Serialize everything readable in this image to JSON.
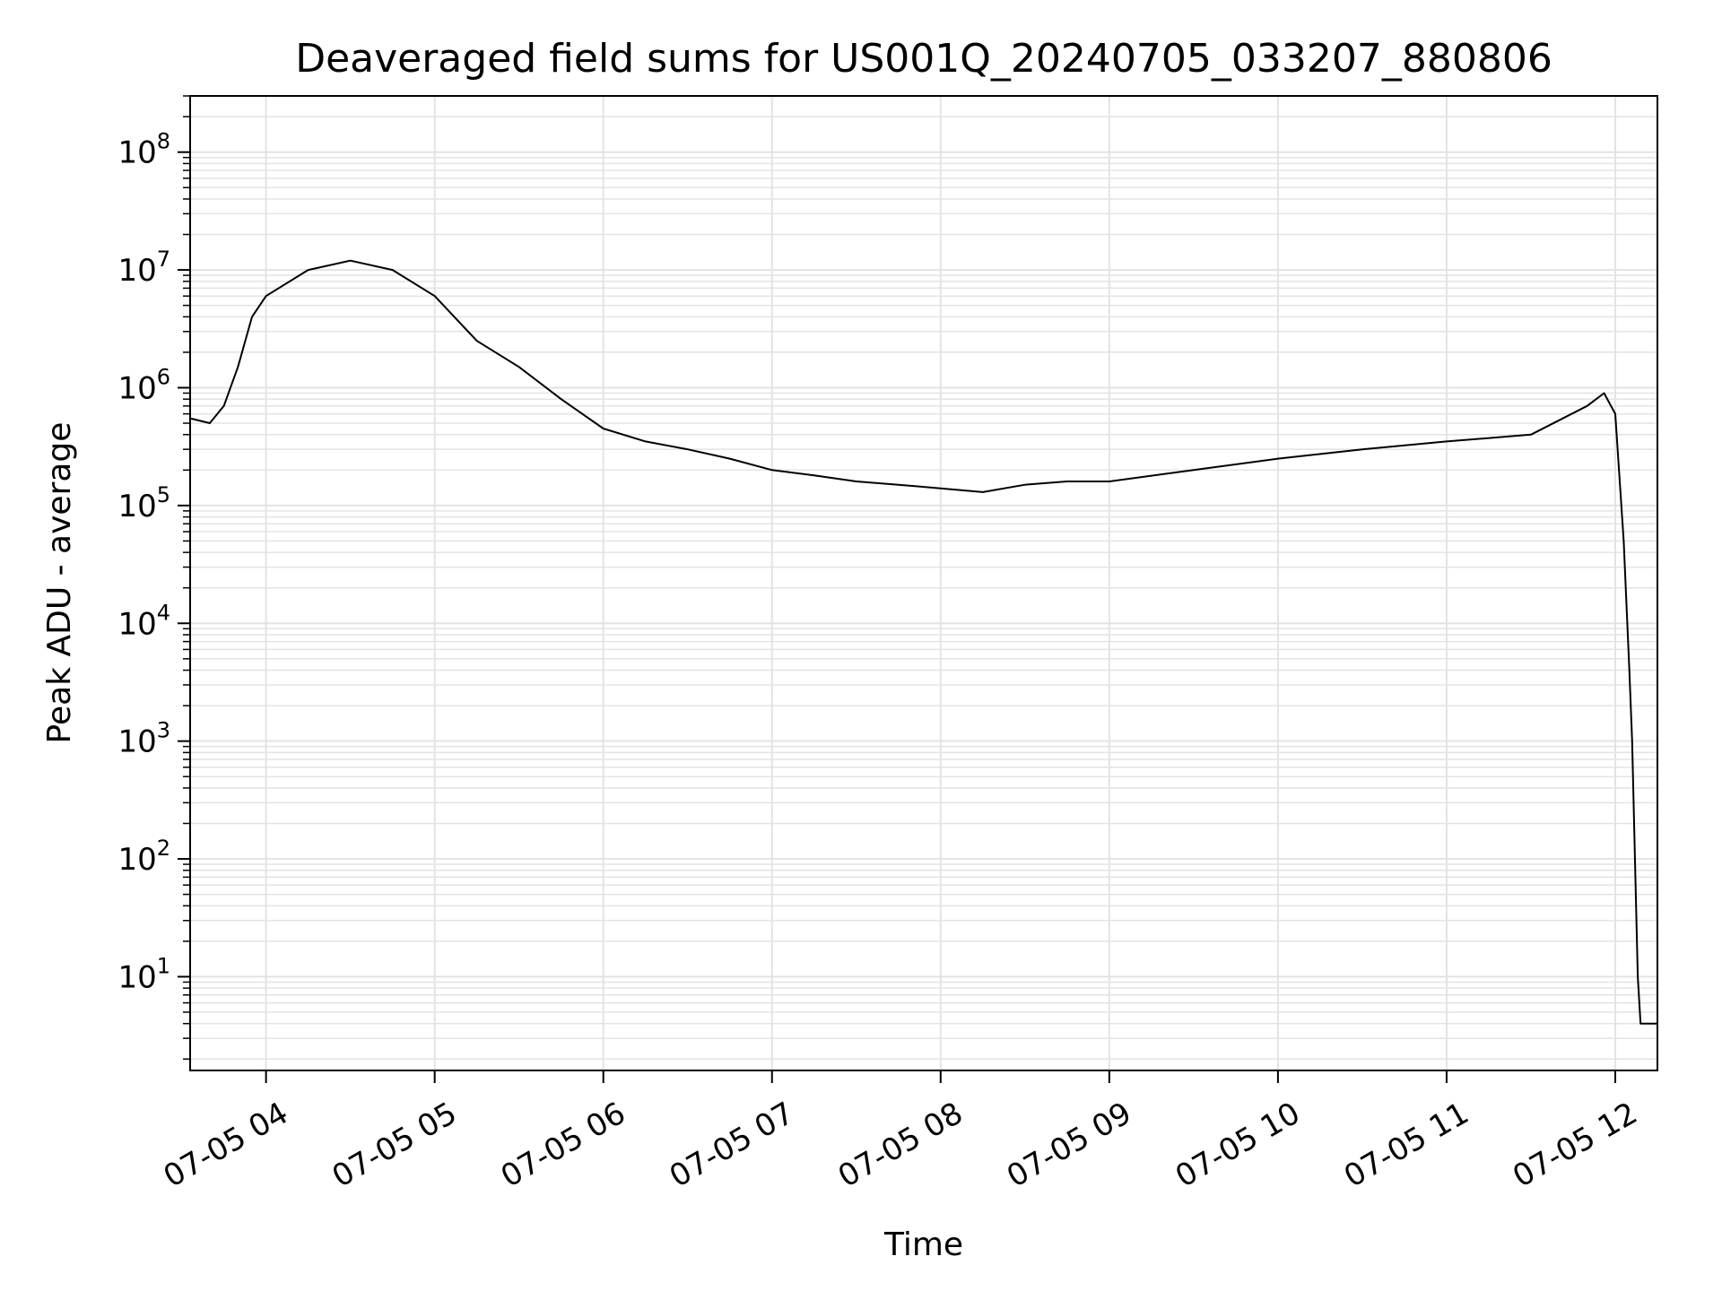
{
  "chart_data": {
    "type": "line",
    "title": "Deaveraged field sums for US001Q_20240705_033207_880806",
    "xlabel": "Time",
    "ylabel": "Peak ADU - average",
    "yscale": "log",
    "grid": true,
    "line_color": "#000000",
    "grid_color": "#e3e3e3",
    "xlim": [
      "2024-07-05 03:33",
      "2024-07-05 12:15"
    ],
    "ylim": [
      1.6,
      300000000
    ],
    "x_ticks": [
      {
        "value": "2024-07-05 04:00",
        "label": "07-05 04"
      },
      {
        "value": "2024-07-05 05:00",
        "label": "07-05 05"
      },
      {
        "value": "2024-07-05 06:00",
        "label": "07-05 06"
      },
      {
        "value": "2024-07-05 07:00",
        "label": "07-05 07"
      },
      {
        "value": "2024-07-05 08:00",
        "label": "07-05 08"
      },
      {
        "value": "2024-07-05 09:00",
        "label": "07-05 09"
      },
      {
        "value": "2024-07-05 10:00",
        "label": "07-05 10"
      },
      {
        "value": "2024-07-05 11:00",
        "label": "07-05 11"
      },
      {
        "value": "2024-07-05 12:00",
        "label": "07-05 12"
      }
    ],
    "y_ticks": [
      {
        "value": 10,
        "base": "10",
        "exp": "1"
      },
      {
        "value": 100,
        "base": "10",
        "exp": "2"
      },
      {
        "value": 1000,
        "base": "10",
        "exp": "3"
      },
      {
        "value": 10000,
        "base": "10",
        "exp": "4"
      },
      {
        "value": 100000,
        "base": "10",
        "exp": "5"
      },
      {
        "value": 1000000,
        "base": "10",
        "exp": "6"
      },
      {
        "value": 10000000,
        "base": "10",
        "exp": "7"
      },
      {
        "value": 100000000,
        "base": "10",
        "exp": "8"
      }
    ],
    "series": [
      {
        "x": [
          "2024-07-05 03:33",
          "2024-07-05 03:40",
          "2024-07-05 03:45",
          "2024-07-05 03:50",
          "2024-07-05 03:55",
          "2024-07-05 04:00",
          "2024-07-05 04:15",
          "2024-07-05 04:30",
          "2024-07-05 04:45",
          "2024-07-05 05:00",
          "2024-07-05 05:15",
          "2024-07-05 05:30",
          "2024-07-05 05:45",
          "2024-07-05 06:00",
          "2024-07-05 06:15",
          "2024-07-05 06:30",
          "2024-07-05 06:45",
          "2024-07-05 07:00",
          "2024-07-05 07:15",
          "2024-07-05 07:30",
          "2024-07-05 07:45",
          "2024-07-05 08:00",
          "2024-07-05 08:15",
          "2024-07-05 08:30",
          "2024-07-05 08:45",
          "2024-07-05 09:00",
          "2024-07-05 09:30",
          "2024-07-05 10:00",
          "2024-07-05 10:30",
          "2024-07-05 11:00",
          "2024-07-05 11:30",
          "2024-07-05 11:50",
          "2024-07-05 11:56",
          "2024-07-05 12:00",
          "2024-07-05 12:03",
          "2024-07-05 12:05",
          "2024-07-05 12:06",
          "2024-07-05 12:08",
          "2024-07-05 12:09",
          "2024-07-05 12:15"
        ],
        "y": [
          550000,
          500000,
          700000,
          1500000,
          4000000,
          6000000,
          10000000,
          12000000,
          10000000,
          6000000,
          2500000,
          1500000,
          800000,
          450000,
          350000,
          300000,
          250000,
          200000,
          180000,
          160000,
          150000,
          140000,
          130000,
          150000,
          160000,
          160000,
          200000,
          250000,
          300000,
          350000,
          400000,
          700000,
          900000,
          600000,
          50000,
          4000,
          1000,
          10,
          4,
          4
        ]
      }
    ]
  }
}
